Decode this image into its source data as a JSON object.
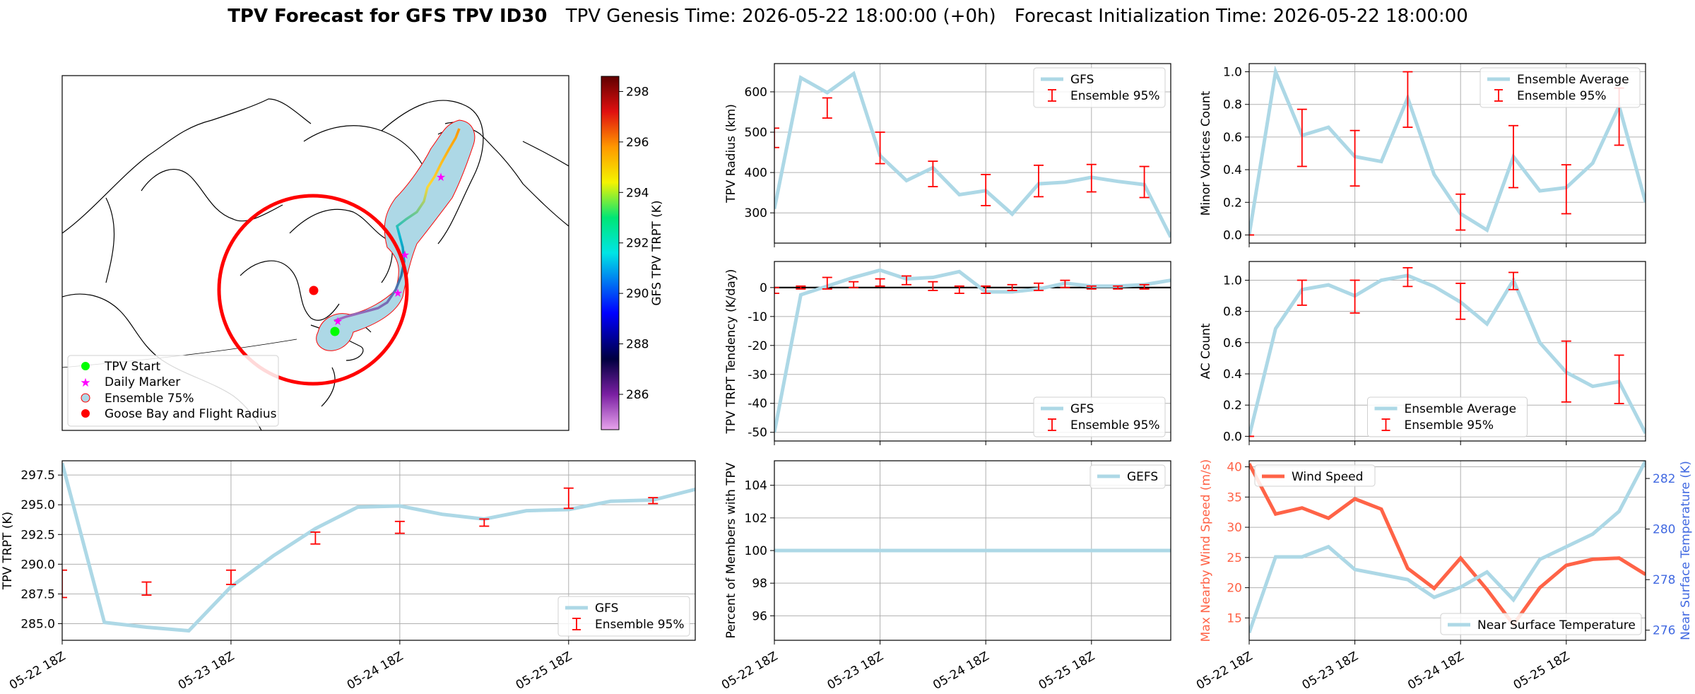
{
  "title": {
    "bold": "TPV Forecast for GFS TPV ID30",
    "genesis": "TPV Genesis Time: 2026-05-22 18:00:00 (+0h)",
    "init": "Forecast Initialization Time: 2026-05-22 18:00:00"
  },
  "colors": {
    "line": "#add8e6",
    "error": "#ff0000",
    "wind": "#ff6347",
    "temp_axis": "#4169e1",
    "grid": "#b0b0b0"
  },
  "map": {
    "legend": [
      "TPV Start",
      "Daily Marker",
      "Ensemble 75%",
      "Goose Bay and Flight Radius"
    ],
    "colorbar_label": "GFS TPV TRPT (K)",
    "colorbar_ticks": [
      "286",
      "288",
      "290",
      "292",
      "294",
      "296",
      "298"
    ]
  },
  "chart_data": [
    {
      "id": "radius",
      "type": "line",
      "ylabel": "TPV Radius (km)",
      "ylim": [
        225,
        670
      ],
      "yticks": [
        300,
        400,
        500,
        600
      ],
      "x": [
        0,
        6,
        12,
        18,
        24,
        30,
        36,
        42,
        48,
        54,
        60,
        66,
        72,
        78,
        84,
        90
      ],
      "values": [
        310,
        635,
        598,
        645,
        442,
        380,
        412,
        345,
        355,
        297,
        372,
        376,
        388,
        378,
        370,
        240
      ],
      "err_x": [
        0,
        12,
        24,
        36,
        48,
        60,
        72,
        84
      ],
      "err_low": [
        462,
        535,
        422,
        365,
        318,
        340,
        352,
        338
      ],
      "err_high": [
        510,
        585,
        500,
        428,
        395,
        418,
        420,
        415
      ],
      "legend": [
        "GFS",
        "Ensemble 95%"
      ],
      "legend_pos": "top-right"
    },
    {
      "id": "minor",
      "type": "line",
      "ylabel": "Minor Vortices Count",
      "ylim": [
        -0.05,
        1.05
      ],
      "yticks": [
        0.0,
        0.2,
        0.4,
        0.6,
        0.8,
        1.0
      ],
      "x": [
        0,
        6,
        12,
        18,
        24,
        30,
        36,
        42,
        48,
        54,
        60,
        66,
        72,
        78,
        84,
        90
      ],
      "values": [
        0.0,
        1.0,
        0.61,
        0.66,
        0.48,
        0.45,
        0.84,
        0.37,
        0.13,
        0.03,
        0.48,
        0.27,
        0.29,
        0.44,
        0.79,
        0.2
      ],
      "err_x": [
        0,
        12,
        24,
        36,
        48,
        60,
        72,
        84
      ],
      "err_low": [
        0.0,
        0.42,
        0.3,
        0.66,
        0.03,
        0.29,
        0.13,
        0.55
      ],
      "err_high": [
        0.0,
        0.77,
        0.64,
        1.0,
        0.25,
        0.67,
        0.43,
        0.9
      ],
      "legend": [
        "Ensemble Average",
        "Ensemble 95%"
      ],
      "legend_pos": "top-right"
    },
    {
      "id": "tendency",
      "type": "line",
      "ylabel": "TPV TRPT Tendency (K/day)",
      "ylim": [
        -53,
        9
      ],
      "yticks": [
        -50,
        -40,
        -30,
        -20,
        -10,
        0
      ],
      "zero_line": true,
      "x": [
        0,
        6,
        12,
        18,
        24,
        30,
        36,
        42,
        48,
        54,
        60,
        66,
        72,
        78,
        84,
        90
      ],
      "values": [
        -50,
        -2.5,
        0.5,
        3.5,
        6,
        3,
        3.5,
        5.5,
        -1.5,
        -1.5,
        -0.5,
        1.5,
        0.5,
        0.5,
        1,
        2.5
      ],
      "err_x": [
        0,
        6,
        12,
        18,
        24,
        30,
        36,
        42,
        48,
        54,
        60,
        66,
        72,
        78,
        84
      ],
      "err_low": [
        -2,
        -0.5,
        -0.5,
        0,
        0.5,
        1,
        -1,
        -2,
        -2,
        -1,
        -1,
        0,
        -0.5,
        -0.5,
        -0.5
      ],
      "err_high": [
        0,
        0.5,
        3.5,
        2,
        3,
        4,
        2,
        0.5,
        0.5,
        1,
        1.5,
        2.5,
        0.5,
        0.5,
        1
      ],
      "legend": [
        "GFS",
        "Ensemble 95%"
      ],
      "legend_pos": "bottom-right"
    },
    {
      "id": "ac",
      "type": "line",
      "ylabel": "AC Count",
      "ylim": [
        -0.03,
        1.12
      ],
      "yticks": [
        0.0,
        0.2,
        0.4,
        0.6,
        0.8,
        1.0
      ],
      "x": [
        0,
        6,
        12,
        18,
        24,
        30,
        36,
        42,
        48,
        54,
        60,
        66,
        72,
        78,
        84,
        90
      ],
      "values": [
        0.0,
        0.69,
        0.94,
        0.97,
        0.9,
        1.0,
        1.03,
        0.96,
        0.86,
        0.72,
        1.0,
        0.6,
        0.41,
        0.32,
        0.35,
        0.02
      ],
      "err_x": [
        0,
        12,
        24,
        36,
        48,
        60,
        72,
        84
      ],
      "err_low": [
        0.0,
        0.84,
        0.79,
        0.96,
        0.75,
        0.94,
        0.22,
        0.21
      ],
      "err_high": [
        0.0,
        1.0,
        1.0,
        1.08,
        0.98,
        1.05,
        0.61,
        0.52
      ],
      "legend": [
        "Ensemble Average",
        "Ensemble 95%"
      ],
      "legend_pos": "bottom-center"
    },
    {
      "id": "trpt",
      "type": "line",
      "ylabel": "TPV TRPT (K)",
      "ylim": [
        283.6,
        298.7
      ],
      "yticks": [
        285.0,
        287.5,
        290.0,
        292.5,
        295.0,
        297.5
      ],
      "x": [
        0,
        6,
        12,
        18,
        24,
        30,
        36,
        42,
        48,
        54,
        60,
        66,
        72,
        78,
        84,
        90
      ],
      "values": [
        298.5,
        285.1,
        284.7,
        284.4,
        288.1,
        290.7,
        293.0,
        294.8,
        294.9,
        294.2,
        293.8,
        294.5,
        294.6,
        295.3,
        295.4,
        296.3
      ],
      "err_x": [
        0,
        12,
        24,
        36,
        48,
        60,
        72,
        84
      ],
      "err_low": [
        287.2,
        287.4,
        288.3,
        291.7,
        292.6,
        293.2,
        294.7,
        295.1
      ],
      "err_high": [
        289.5,
        288.5,
        289.5,
        292.7,
        293.6,
        293.8,
        296.4,
        295.6
      ],
      "legend": [
        "GFS",
        "Ensemble 95%"
      ],
      "legend_pos": "bottom-right"
    },
    {
      "id": "percent",
      "type": "line",
      "ylabel": "Percent of Members with TPV",
      "ylim": [
        94.5,
        105.5
      ],
      "yticks": [
        96,
        98,
        100,
        102,
        104
      ],
      "x": [
        0,
        90
      ],
      "values": [
        100,
        100
      ],
      "legend": [
        "GEFS"
      ],
      "legend_pos": "top-right"
    },
    {
      "id": "wind_temp",
      "type": "line",
      "ylabel": "Max Nearby Wind Speed (m/s)",
      "ylabel_right": "Near Surface Temperature (K)",
      "ylim": [
        11.3,
        41
      ],
      "yticks": [
        15,
        20,
        25,
        30,
        35,
        40
      ],
      "ylim_right": [
        275.6,
        282.7
      ],
      "yticks_right": [
        276,
        278,
        280,
        282
      ],
      "x": [
        0,
        6,
        12,
        18,
        24,
        30,
        36,
        42,
        48,
        54,
        60,
        66,
        72,
        78,
        84,
        90
      ],
      "series": [
        {
          "name": "Wind Speed",
          "axis": "left",
          "values": [
            40.5,
            32.2,
            33.2,
            31.5,
            34.7,
            33.0,
            23.2,
            19.9,
            24.9,
            19.7,
            13.9,
            20.0,
            23.7,
            24.7,
            24.9,
            22.2
          ]
        },
        {
          "name": "Near Surface Temperature",
          "axis": "right",
          "values": [
            275.9,
            278.9,
            278.9,
            279.3,
            278.4,
            278.2,
            278.0,
            277.3,
            277.7,
            278.3,
            277.2,
            278.8,
            279.3,
            279.8,
            280.7,
            282.7
          ]
        }
      ],
      "legend_pos": "top-left / bottom-right"
    }
  ],
  "xticks": [
    "05-22 18Z",
    "05-23 18Z",
    "05-24 18Z",
    "05-25 18Z"
  ],
  "xtick_hours": [
    0,
    24,
    48,
    72
  ]
}
